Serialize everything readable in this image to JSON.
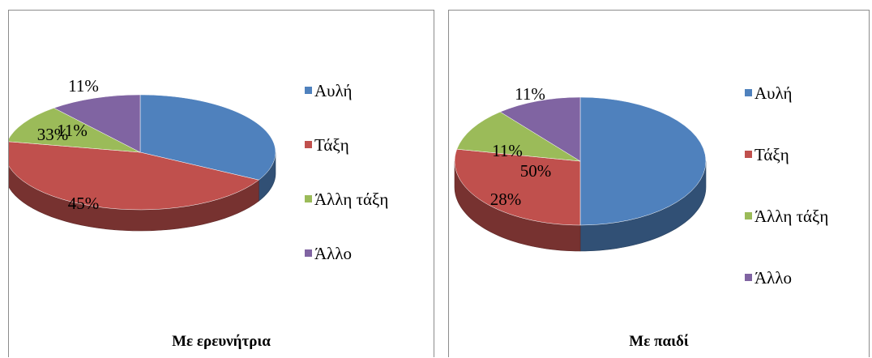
{
  "chart_data": [
    {
      "type": "pie",
      "title": "Με ερευνήτρια",
      "categories": [
        "Αυλή",
        "Τάξη",
        "Άλλη τάξη",
        "Άλλο"
      ],
      "values": [
        33,
        45,
        11,
        11
      ],
      "value_labels": [
        "33%",
        "45%",
        "11%",
        "11%"
      ],
      "colors": [
        "#4f81bd",
        "#c0504d",
        "#9bbb59",
        "#8064a2"
      ],
      "legend_position": "right",
      "style": "3d"
    },
    {
      "type": "pie",
      "title": "Με παιδί",
      "categories": [
        "Αυλή",
        "Τάξη",
        "Άλλη τάξη",
        "Άλλο"
      ],
      "values": [
        50,
        28,
        11,
        11
      ],
      "value_labels": [
        "50%",
        "28%",
        "11%",
        "11%"
      ],
      "colors": [
        "#4f81bd",
        "#c0504d",
        "#9bbb59",
        "#8064a2"
      ],
      "legend_position": "right",
      "style": "3d"
    }
  ]
}
